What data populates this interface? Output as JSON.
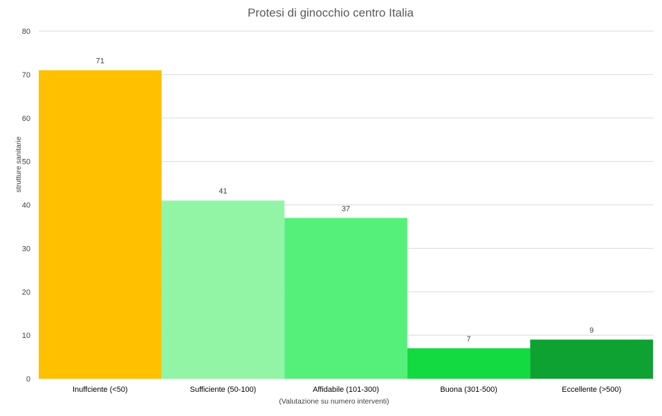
{
  "chart_data": {
    "type": "bar",
    "title": "Protesi di ginocchio centro Italia",
    "xlabel": "(Valutazione su numero interventi)",
    "ylabel": "strutture sanitarie",
    "categories": [
      "Inuffciente (<50)",
      "Sufficiente (50-100)",
      "Affidabile (101-300)",
      "Buona (301-500)",
      "Eccellente (>500)"
    ],
    "values": [
      71,
      41,
      37,
      7,
      9
    ],
    "colors": [
      "#FFC000",
      "#92F5A6",
      "#55F07A",
      "#14DA41",
      "#0DA231"
    ],
    "ylim": [
      0,
      80
    ],
    "yticks": [
      0,
      10,
      20,
      30,
      40,
      50,
      60,
      70,
      80
    ],
    "grid": true,
    "data_labels": true
  }
}
